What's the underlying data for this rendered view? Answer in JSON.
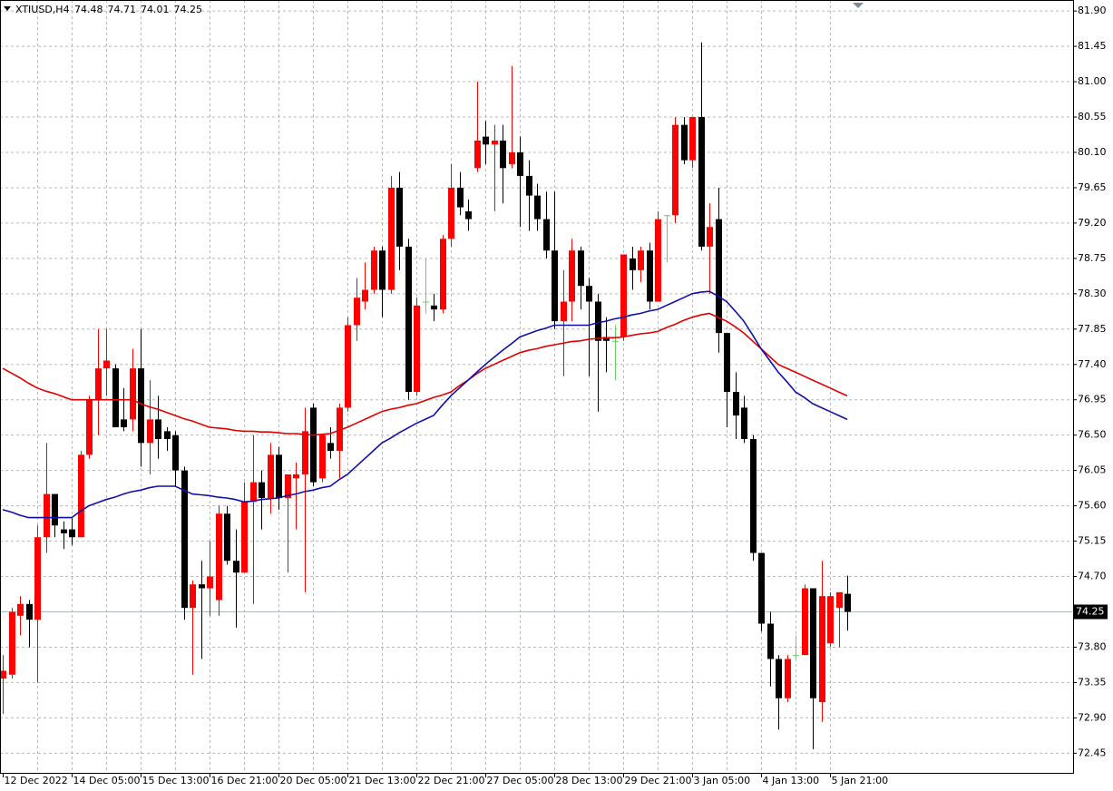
{
  "chart_data": {
    "type": "candlestick",
    "symbol": "XTIUSD,H4",
    "header_values": [
      74.48,
      74.71,
      74.01,
      74.25
    ],
    "last_price": 74.25,
    "up_color": "#ff0000",
    "down_color": "#000000",
    "doji_color": "#5fd35f",
    "grid": true,
    "ylim": [
      72.2,
      82.04
    ],
    "yticks": [
      {
        "value": 72.45,
        "label": "72.45"
      },
      {
        "value": 72.9,
        "label": "72.90"
      },
      73.35,
      {
        "value": 73.8,
        "label": "73.80"
      },
      74.25,
      {
        "value": 74.7,
        "label": "74.70"
      },
      75.15,
      {
        "value": 75.6,
        "label": "75.60"
      },
      76.05,
      {
        "value": 76.5,
        "label": "76.50"
      },
      76.95,
      {
        "value": 77.4,
        "label": "77.40"
      },
      77.85,
      {
        "value": 78.3,
        "label": "78.30"
      },
      78.75,
      {
        "value": 79.2,
        "label": "79.20"
      },
      79.65,
      {
        "value": 80.1,
        "label": "80.10"
      },
      80.55,
      {
        "value": 81.0,
        "label": "81.00"
      },
      81.45,
      {
        "value": 81.9,
        "label": "81.90"
      }
    ],
    "categories": [
      "12 Dec 2022",
      null,
      null,
      null,
      null,
      null,
      null,
      null,
      "14 Dec 05:00",
      null,
      null,
      null,
      null,
      null,
      null,
      null,
      "15 Dec 13:00",
      null,
      null,
      null,
      null,
      null,
      null,
      null,
      "16 Dec 21:00",
      null,
      null,
      null,
      null,
      null,
      null,
      null,
      "20 Dec 05:00",
      null,
      null,
      null,
      null,
      null,
      null,
      null,
      "21 Dec 13:00",
      null,
      null,
      null,
      null,
      null,
      null,
      null,
      "22 Dec 21:00",
      null,
      null,
      null,
      null,
      null,
      null,
      null,
      "27 Dec 05:00",
      null,
      null,
      null,
      null,
      null,
      null,
      null,
      "28 Dec 13:00",
      null,
      null,
      null,
      null,
      null,
      null,
      null,
      "29 Dec 21:00",
      null,
      null,
      null,
      null,
      null,
      null,
      null,
      "3 Jan 05:00",
      null,
      null,
      null,
      null,
      null,
      null,
      null,
      "4 Jan 13:00",
      null,
      null,
      null,
      null,
      null,
      null,
      null,
      "5 Jan 21:00",
      null,
      null
    ],
    "open": [
      73.4,
      73.45,
      74.2,
      74.35,
      74.15,
      75.2,
      75.75,
      75.3,
      75.3,
      75.2,
      76.25,
      76.95,
      77.35,
      77.35,
      76.7,
      76.7,
      77.35,
      76.4,
      76.7,
      76.55,
      76.5,
      76.05,
      74.3,
      74.6,
      74.55,
      74.4,
      75.5,
      74.9,
      74.75,
      75.65,
      75.9,
      75.7,
      76.25,
      75.7,
      75.95,
      76.0,
      76.85,
      75.95,
      76.4,
      76.3,
      76.85,
      77.9,
      78.2,
      78.35,
      78.85,
      78.35,
      79.65,
      78.9,
      77.05,
      78.2,
      78.15,
      78.1,
      79.0,
      79.65,
      79.35,
      79.9,
      80.3,
      80.2,
      80.25,
      79.95,
      80.1,
      79.8,
      79.55,
      79.25,
      78.85,
      77.95,
      78.2,
      78.85,
      78.4,
      78.2,
      77.75,
      77.7,
      77.75,
      78.75,
      78.6,
      78.85,
      78.2,
      79.3,
      79.3,
      80.45,
      80.0,
      80.55,
      78.9,
      79.25,
      77.8,
      77.05,
      76.85,
      76.45,
      75.0,
      74.1,
      73.65,
      73.15,
      73.7,
      73.7,
      74.55,
      73.1,
      73.85,
      74.3,
      74.48
    ],
    "high": [
      73.7,
      74.3,
      74.45,
      74.4,
      75.35,
      76.4,
      75.75,
      75.4,
      75.45,
      76.3,
      77.0,
      77.85,
      77.85,
      77.4,
      77.1,
      77.6,
      77.85,
      77.2,
      77.0,
      76.6,
      76.55,
      76.1,
      74.65,
      74.9,
      75.15,
      75.6,
      75.6,
      75.3,
      75.9,
      76.5,
      76.05,
      76.4,
      76.35,
      76.0,
      76.15,
      76.85,
      76.9,
      76.5,
      76.6,
      76.9,
      78.0,
      78.5,
      78.7,
      78.9,
      78.9,
      79.8,
      79.85,
      79.0,
      78.25,
      78.75,
      78.3,
      79.05,
      79.95,
      79.85,
      79.5,
      81.0,
      80.5,
      80.45,
      80.45,
      81.2,
      80.3,
      80.0,
      79.7,
      79.6,
      79.6,
      78.6,
      79.0,
      78.9,
      78.5,
      78.3,
      78.0,
      77.9,
      78.8,
      78.9,
      78.9,
      78.95,
      79.35,
      79.3,
      80.55,
      80.55,
      80.55,
      81.5,
      79.45,
      79.65,
      77.8,
      77.3,
      77.0,
      76.5,
      75.0,
      74.25,
      73.7,
      73.7,
      73.95,
      74.6,
      74.55,
      74.9,
      74.5,
      74.5,
      74.71
    ],
    "low": [
      72.95,
      73.4,
      73.95,
      73.8,
      73.35,
      75.0,
      75.2,
      75.05,
      75.1,
      75.2,
      76.2,
      76.5,
      77.0,
      76.6,
      76.55,
      76.55,
      76.1,
      76.0,
      76.2,
      76.3,
      75.85,
      74.15,
      73.45,
      73.65,
      74.2,
      74.2,
      74.85,
      74.05,
      74.75,
      74.35,
      75.3,
      75.5,
      75.55,
      74.75,
      75.3,
      74.5,
      75.85,
      75.9,
      76.2,
      75.95,
      76.8,
      77.7,
      78.1,
      78.3,
      78.0,
      78.3,
      78.6,
      76.95,
      77.0,
      78.05,
      77.95,
      78.05,
      78.9,
      79.3,
      79.1,
      79.85,
      79.95,
      79.35,
      79.45,
      79.9,
      79.15,
      79.1,
      79.1,
      78.75,
      77.85,
      77.25,
      77.95,
      78.1,
      77.25,
      76.8,
      77.3,
      77.2,
      77.7,
      78.35,
      78.45,
      78.1,
      78.2,
      78.7,
      79.2,
      79.95,
      79.9,
      78.85,
      78.3,
      77.55,
      76.6,
      76.45,
      76.4,
      74.9,
      74.0,
      73.3,
      72.75,
      73.1,
      73.65,
      73.7,
      72.5,
      72.85,
      73.8,
      73.8,
      74.01
    ],
    "close": [
      73.5,
      74.25,
      74.35,
      74.15,
      75.2,
      75.75,
      75.35,
      75.25,
      75.2,
      76.25,
      76.95,
      77.35,
      77.45,
      76.6,
      76.6,
      77.35,
      76.4,
      76.7,
      76.45,
      76.45,
      76.05,
      74.3,
      74.6,
      74.55,
      74.7,
      75.5,
      74.9,
      74.75,
      75.65,
      75.9,
      75.7,
      76.25,
      75.7,
      76.0,
      76.0,
      76.55,
      75.9,
      76.5,
      76.3,
      76.85,
      77.9,
      78.25,
      78.35,
      78.85,
      78.35,
      79.65,
      78.9,
      77.05,
      78.15,
      78.2,
      78.1,
      79.0,
      79.65,
      79.4,
      79.25,
      80.25,
      80.2,
      80.25,
      79.9,
      80.1,
      79.8,
      79.55,
      79.25,
      78.85,
      77.95,
      78.2,
      78.85,
      78.4,
      78.2,
      77.7,
      77.7,
      77.7,
      78.8,
      78.6,
      78.85,
      78.2,
      79.25,
      79.3,
      80.45,
      80.0,
      80.55,
      78.9,
      79.15,
      77.8,
      77.05,
      76.75,
      76.45,
      75.0,
      74.1,
      73.65,
      73.15,
      73.65,
      73.7,
      74.55,
      73.15,
      74.45,
      74.45,
      74.5,
      74.25
    ],
    "series": [
      {
        "color": "#e00000",
        "values": [
          77.35,
          77.29,
          77.23,
          77.16,
          77.1,
          77.06,
          77.03,
          76.99,
          76.95,
          76.95,
          76.95,
          76.95,
          76.95,
          76.95,
          76.95,
          76.95,
          76.9,
          76.86,
          76.83,
          76.79,
          76.75,
          76.71,
          76.68,
          76.64,
          76.6,
          76.59,
          76.58,
          76.56,
          76.55,
          76.55,
          76.54,
          76.54,
          76.53,
          76.52,
          76.52,
          76.51,
          76.5,
          76.51,
          76.52,
          76.56,
          76.6,
          76.65,
          76.7,
          76.75,
          76.8,
          76.83,
          76.85,
          76.88,
          76.9,
          76.94,
          76.98,
          77.01,
          77.05,
          77.13,
          77.2,
          77.28,
          77.35,
          77.4,
          77.45,
          77.5,
          77.55,
          77.58,
          77.6,
          77.63,
          77.65,
          77.67,
          77.69,
          77.7,
          77.72,
          77.73,
          77.74,
          77.74,
          77.75,
          77.77,
          77.79,
          77.8,
          77.82,
          77.87,
          77.91,
          77.96,
          78.0,
          78.03,
          78.05,
          78.0,
          77.95,
          77.88,
          77.8,
          77.7,
          77.6,
          77.5,
          77.4,
          77.35,
          77.3,
          77.25,
          77.2,
          77.15,
          77.1,
          77.05,
          77.0
        ]
      },
      {
        "color": "#1010a8",
        "values": [
          75.55,
          75.52,
          75.48,
          75.45,
          75.45,
          75.45,
          75.45,
          75.45,
          75.45,
          75.53,
          75.6,
          75.64,
          75.68,
          75.71,
          75.75,
          75.78,
          75.8,
          75.83,
          75.85,
          75.85,
          75.85,
          75.8,
          75.75,
          75.74,
          75.73,
          75.71,
          75.7,
          75.68,
          75.65,
          75.66,
          75.68,
          75.69,
          75.7,
          75.73,
          75.75,
          75.78,
          75.8,
          75.83,
          75.85,
          75.93,
          76.0,
          76.1,
          76.2,
          76.3,
          76.4,
          76.46,
          76.53,
          76.59,
          76.65,
          76.7,
          76.75,
          76.88,
          77.0,
          77.1,
          77.2,
          77.3,
          77.4,
          77.49,
          77.58,
          77.66,
          77.75,
          77.79,
          77.83,
          77.86,
          77.9,
          77.9,
          77.9,
          77.9,
          77.9,
          77.93,
          77.95,
          77.98,
          78.0,
          78.03,
          78.05,
          78.08,
          78.1,
          78.15,
          78.2,
          78.25,
          78.3,
          78.32,
          78.33,
          78.27,
          78.2,
          78.08,
          77.95,
          77.78,
          77.6,
          77.45,
          77.3,
          77.18,
          77.05,
          76.98,
          76.9,
          76.85,
          76.8,
          76.75,
          76.7
        ]
      }
    ]
  }
}
